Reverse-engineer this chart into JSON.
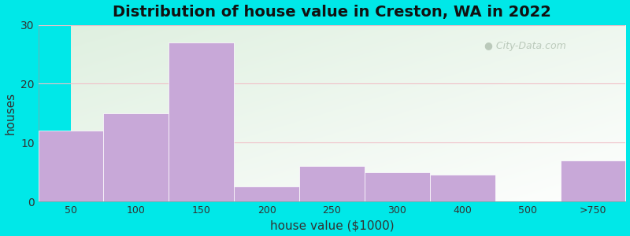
{
  "categories": [
    "50",
    "100",
    "150",
    "200",
    "250",
    "300",
    "400",
    "500",
    ">750"
  ],
  "values": [
    12,
    15,
    27,
    2.5,
    6,
    5,
    4.5,
    0,
    7
  ],
  "bar_color": "#c8a8d8",
  "title": "Distribution of house value in Creston, WA in 2022",
  "xlabel": "house value ($1000)",
  "ylabel": "houses",
  "ylim": [
    0,
    30
  ],
  "yticks": [
    0,
    10,
    20,
    30
  ],
  "figure_bg": "#00e8e8",
  "plot_bg_top_left": "#dff0e0",
  "plot_bg_bottom_right": "#f8fff8",
  "grid_color": "#f0c0c8",
  "title_fontsize": 14,
  "axis_label_fontsize": 11,
  "watermark_text": "City-Data.com"
}
